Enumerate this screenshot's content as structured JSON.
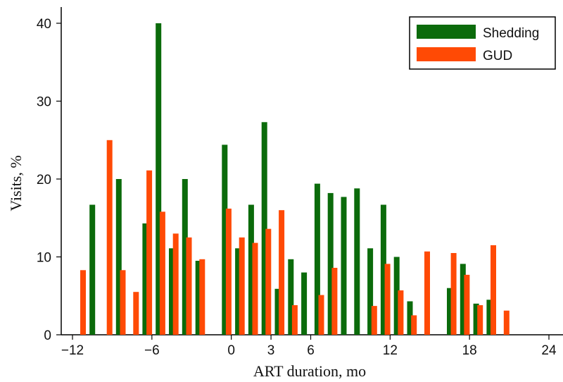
{
  "chart_data": {
    "type": "bar",
    "title": "",
    "xlabel": "ART duration, mo",
    "ylabel": "Visits, %",
    "xlim": [
      -12,
      24
    ],
    "ylim": [
      0,
      40
    ],
    "xticks": [
      -12,
      -6,
      0,
      3,
      6,
      12,
      18,
      24
    ],
    "xtick_labels": [
      "−12",
      "−6",
      "0",
      "3",
      "6",
      "12",
      "18",
      "24"
    ],
    "yticks": [
      0,
      10,
      20,
      30,
      40
    ],
    "ytick_labels": [
      "0",
      "10",
      "20",
      "30",
      "40"
    ],
    "grid": false,
    "legend_position": "top-right",
    "series": [
      {
        "name": "Shedding",
        "color": "#0b6b0b",
        "x": [
          -10.5,
          -8.5,
          -6.5,
          -5.5,
          -4.5,
          -3.5,
          -2.5,
          -0.5,
          0.5,
          1.5,
          2.5,
          3.5,
          4.5,
          5.5,
          6.5,
          7.5,
          8.5,
          9.5,
          10.5,
          11.5,
          12.5,
          13.5,
          14.5,
          16.5,
          17.5,
          18.5,
          19.5,
          20.5
        ],
        "values": [
          16.7,
          20,
          14.3,
          40,
          11.1,
          20,
          9.5,
          24.4,
          11.1,
          16.7,
          27.3,
          5.9,
          9.7,
          8,
          19.4,
          18.2,
          17.7,
          18.8,
          11.1,
          16.7,
          10,
          4.3,
          null,
          6,
          9.1,
          4,
          4.5,
          null
        ]
      },
      {
        "name": "GUD",
        "color": "#ff4a05",
        "x": [
          -11.2,
          -9.2,
          -8.2,
          -7.2,
          -6.2,
          -5.2,
          -4.2,
          -3.2,
          -2.2,
          -1.2,
          -0.2,
          0.8,
          1.8,
          2.8,
          3.8,
          4.8,
          5.8,
          6.8,
          7.8,
          8.8,
          9.8,
          10.8,
          11.8,
          12.8,
          13.8,
          14.8,
          15.8,
          16.8,
          17.8,
          18.8,
          19.8,
          20.8
        ],
        "values": [
          8.3,
          25,
          8.3,
          5.5,
          21.1,
          15.8,
          13,
          12.5,
          9.7,
          null,
          16.2,
          12.5,
          11.8,
          13.6,
          16,
          3.8,
          null,
          5.1,
          8.6,
          null,
          null,
          3.7,
          9.1,
          5.7,
          2.5,
          10.7,
          null,
          10.5,
          7.7,
          3.8,
          11.5,
          3.1
        ]
      }
    ]
  }
}
